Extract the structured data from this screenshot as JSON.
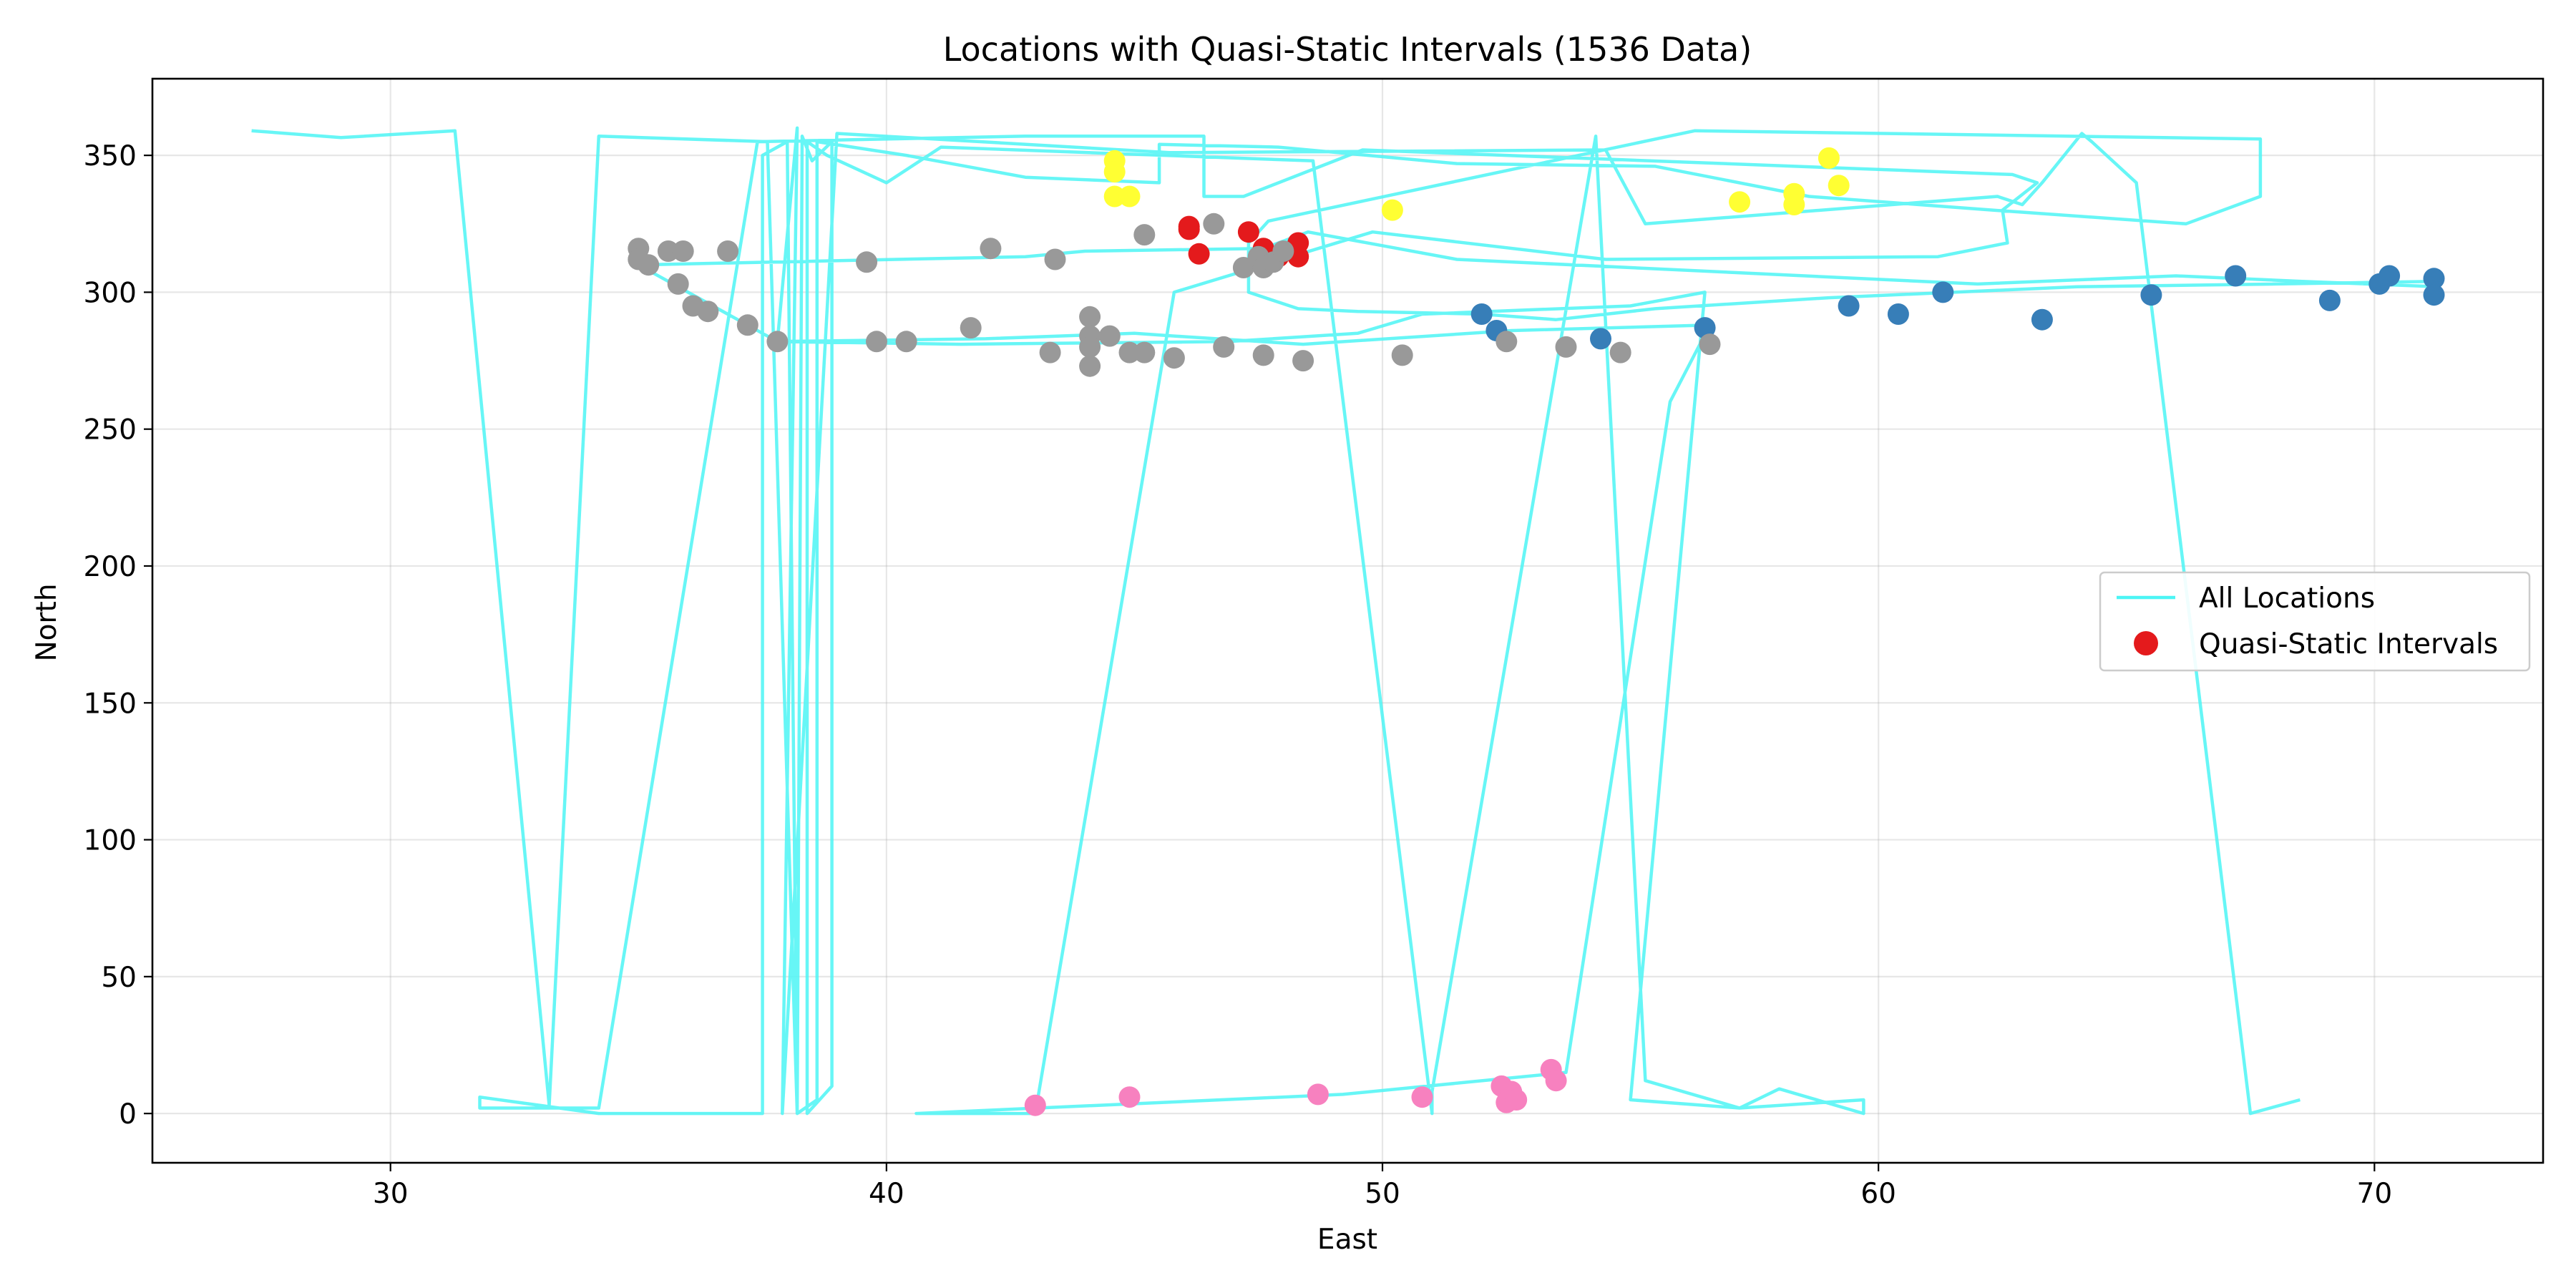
{
  "chart_data": {
    "type": "scatter",
    "title": "Locations with Quasi-Static Intervals (1536 Data)",
    "xlabel": "East",
    "ylabel": "North",
    "xlim": [
      25.2,
      73.4
    ],
    "ylim": [
      -18,
      378
    ],
    "xticks": [
      30,
      40,
      50,
      60,
      70
    ],
    "yticks": [
      0,
      50,
      100,
      150,
      200,
      250,
      300,
      350
    ],
    "grid": true,
    "legend_position": "center-right",
    "series": [
      {
        "name": "All Locations",
        "kind": "line",
        "color": "#4cf5f5",
        "points": [
          [
            27.2,
            359
          ],
          [
            29.0,
            356.5
          ],
          [
            31.3,
            359
          ],
          [
            33.2,
            3
          ],
          [
            34.2,
            357
          ],
          [
            37.6,
            355
          ],
          [
            38.2,
            0
          ],
          [
            38.3,
            357
          ],
          [
            38.5,
            348
          ],
          [
            38.9,
            355
          ],
          [
            38.9,
            10
          ],
          [
            38.4,
            0
          ],
          [
            38.4,
            355
          ],
          [
            38.8,
            350
          ],
          [
            40.0,
            340
          ],
          [
            41.1,
            353
          ],
          [
            48.6,
            348
          ],
          [
            51.0,
            0
          ],
          [
            51.0,
            8
          ],
          [
            54.3,
            357
          ],
          [
            55.3,
            12
          ],
          [
            57.2,
            2
          ],
          [
            58.0,
            9
          ],
          [
            59.7,
            0
          ],
          [
            59.7,
            5
          ],
          [
            57.2,
            2
          ],
          [
            55.0,
            5
          ],
          [
            56.5,
            300
          ],
          [
            55.0,
            295
          ],
          [
            50.8,
            292
          ],
          [
            49.5,
            285
          ],
          [
            46.9,
            282
          ],
          [
            41.5,
            281
          ],
          [
            37.8,
            282
          ],
          [
            35.0,
            310
          ],
          [
            42.8,
            313
          ],
          [
            44.0,
            315
          ],
          [
            47.6,
            316
          ],
          [
            48.5,
            322
          ],
          [
            51.5,
            312
          ],
          [
            62.0,
            303
          ],
          [
            66.0,
            306
          ],
          [
            68.5,
            304
          ],
          [
            71.3,
            302
          ],
          [
            71.3,
            304
          ],
          [
            68.0,
            303
          ],
          [
            64.0,
            302
          ],
          [
            59.0,
            298
          ],
          [
            55.5,
            294
          ],
          [
            53.5,
            290
          ],
          [
            52.0,
            292
          ],
          [
            49.5,
            293
          ],
          [
            48.3,
            294
          ],
          [
            47.3,
            300
          ],
          [
            47.3,
            318
          ],
          [
            47.7,
            326
          ],
          [
            56.3,
            359
          ],
          [
            67.7,
            356
          ],
          [
            67.7,
            335
          ],
          [
            66.2,
            325
          ],
          [
            62.3,
            330
          ],
          [
            58.6,
            335
          ],
          [
            55.5,
            346
          ],
          [
            51.5,
            347
          ],
          [
            47.9,
            353
          ],
          [
            45.5,
            354
          ],
          [
            45.5,
            340
          ],
          [
            42.8,
            342
          ],
          [
            40.4,
            350
          ],
          [
            38.6,
            355
          ],
          [
            38.6,
            5
          ],
          [
            38.2,
            0
          ],
          [
            38.0,
            355
          ],
          [
            37.5,
            350
          ],
          [
            37.5,
            0
          ],
          [
            34.2,
            0
          ],
          [
            31.8,
            6
          ],
          [
            31.8,
            2
          ],
          [
            34.2,
            2
          ],
          [
            37.4,
            355
          ],
          [
            42.8,
            357
          ],
          [
            46.4,
            357
          ],
          [
            46.4,
            335
          ],
          [
            47.2,
            335
          ],
          [
            49.6,
            352
          ],
          [
            62.7,
            343
          ],
          [
            63.2,
            340
          ],
          [
            62.5,
            330
          ],
          [
            62.6,
            318
          ],
          [
            61.2,
            313
          ],
          [
            54.5,
            312
          ],
          [
            49.8,
            322
          ],
          [
            45.8,
            300
          ],
          [
            43.0,
            0
          ],
          [
            40.6,
            0
          ],
          [
            49.2,
            7
          ],
          [
            53.7,
            15
          ],
          [
            55.8,
            260
          ],
          [
            56.6,
            288
          ],
          [
            52.6,
            286
          ],
          [
            48.4,
            281
          ],
          [
            45.8,
            284
          ],
          [
            45.0,
            285
          ],
          [
            42.0,
            283
          ],
          [
            37.8,
            282
          ],
          [
            38.2,
            360
          ],
          [
            37.9,
            0
          ],
          [
            39.0,
            358
          ],
          [
            45.7,
            351
          ],
          [
            54.5,
            352
          ],
          [
            55.3,
            325
          ],
          [
            62.4,
            335
          ],
          [
            62.9,
            332
          ],
          [
            63.3,
            340
          ],
          [
            64.1,
            358
          ],
          [
            64.3,
            355
          ],
          [
            65.2,
            340
          ],
          [
            67.5,
            0
          ],
          [
            68.5,
            5
          ]
        ]
      },
      {
        "name": "Quasi-Static Intervals",
        "kind": "scatter",
        "color": "#e41a1c",
        "points": [
          [
            46.1,
            323
          ],
          [
            46.1,
            324
          ],
          [
            47.3,
            322
          ],
          [
            47.6,
            316
          ],
          [
            48.3,
            313
          ],
          [
            48.3,
            318
          ],
          [
            46.3,
            314
          ],
          [
            47.9,
            313
          ]
        ]
      },
      {
        "name": "",
        "kind": "scatter",
        "color": "#ffff33",
        "points": [
          [
            44.6,
            348
          ],
          [
            44.6,
            344
          ],
          [
            44.6,
            335
          ],
          [
            44.9,
            335
          ],
          [
            50.2,
            330
          ],
          [
            57.2,
            333
          ],
          [
            58.3,
            336
          ],
          [
            58.3,
            332
          ],
          [
            59.0,
            349
          ],
          [
            59.2,
            339
          ]
        ]
      },
      {
        "name": "",
        "kind": "scatter",
        "color": "#377eb8",
        "points": [
          [
            52.0,
            292
          ],
          [
            52.3,
            286
          ],
          [
            54.4,
            283
          ],
          [
            56.5,
            287
          ],
          [
            59.4,
            295
          ],
          [
            60.4,
            292
          ],
          [
            61.3,
            300
          ],
          [
            63.3,
            290
          ],
          [
            65.5,
            299
          ],
          [
            67.2,
            306
          ],
          [
            69.1,
            297
          ],
          [
            70.1,
            303
          ],
          [
            70.3,
            306
          ],
          [
            71.2,
            305
          ],
          [
            71.2,
            299
          ]
        ]
      },
      {
        "name": "",
        "kind": "scatter",
        "color": "#999999",
        "points": [
          [
            35.0,
            316
          ],
          [
            35.0,
            312
          ],
          [
            35.2,
            310
          ],
          [
            35.6,
            315
          ],
          [
            35.9,
            315
          ],
          [
            36.8,
            315
          ],
          [
            39.6,
            311
          ],
          [
            42.1,
            316
          ],
          [
            43.4,
            312
          ],
          [
            45.2,
            321
          ],
          [
            46.6,
            325
          ],
          [
            47.2,
            309
          ],
          [
            47.5,
            313
          ],
          [
            47.6,
            309
          ],
          [
            47.8,
            311
          ],
          [
            48.0,
            315
          ],
          [
            35.8,
            303
          ],
          [
            36.1,
            295
          ],
          [
            36.4,
            293
          ],
          [
            37.2,
            288
          ],
          [
            37.8,
            282
          ],
          [
            39.8,
            282
          ],
          [
            40.4,
            282
          ],
          [
            41.7,
            287
          ],
          [
            43.3,
            278
          ],
          [
            44.1,
            291
          ],
          [
            44.1,
            284
          ],
          [
            44.1,
            280
          ],
          [
            44.1,
            273
          ],
          [
            44.5,
            284
          ],
          [
            44.9,
            278
          ],
          [
            45.2,
            278
          ],
          [
            45.8,
            276
          ],
          [
            46.8,
            280
          ],
          [
            47.6,
            277
          ],
          [
            48.4,
            275
          ],
          [
            50.4,
            277
          ],
          [
            52.5,
            282
          ],
          [
            53.7,
            280
          ],
          [
            54.8,
            278
          ],
          [
            56.6,
            281
          ]
        ]
      },
      {
        "name": "",
        "kind": "scatter",
        "color": "#f781bf",
        "points": [
          [
            43.0,
            3
          ],
          [
            44.9,
            6
          ],
          [
            48.7,
            7
          ],
          [
            50.8,
            6
          ],
          [
            52.4,
            10
          ],
          [
            52.5,
            4
          ],
          [
            52.6,
            8
          ],
          [
            52.7,
            5
          ],
          [
            53.4,
            16
          ],
          [
            53.5,
            12
          ]
        ]
      }
    ]
  }
}
